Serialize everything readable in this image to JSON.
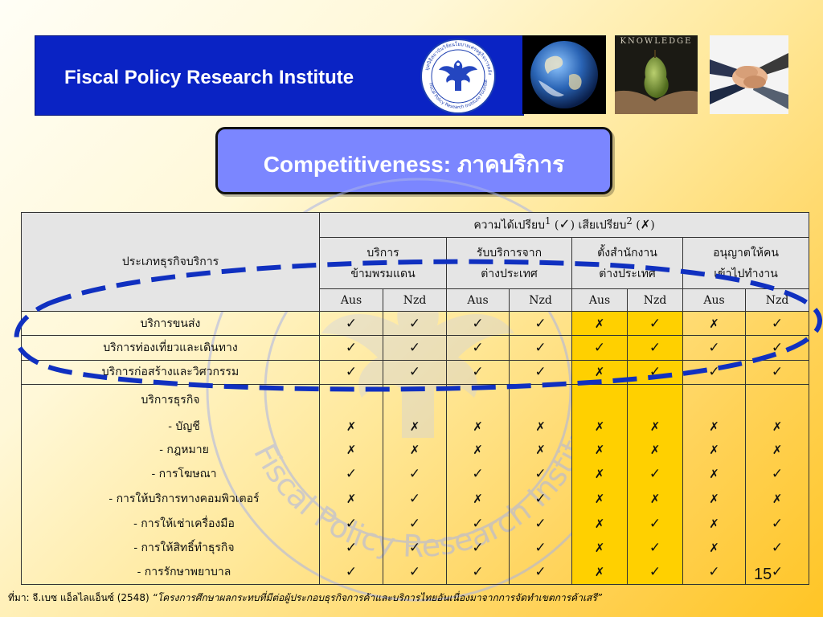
{
  "header": {
    "title": "Fiscal Policy Research Institute",
    "seal_text_top": "มูลนิธิสถาบันวิจัยนโยบายเศรษฐกิจการคลัง",
    "seal_text_bottom": "Fiscal Policy Research Institute Foundation",
    "knowledge_label": "KNOWLEDGE"
  },
  "slide_title": "Competitiveness: ภาคบริการ",
  "table": {
    "type_header": "ประเภทธุรกิจบริการ",
    "group_header_prefix": "ความได้เปรียบ",
    "group_sup1": "1",
    "group_sep": " (",
    "group_mid": ") เสียเปรียบ",
    "group_sup2": "2",
    "group_end": ")",
    "categories": [
      {
        "line1": "บริการ",
        "line2": "ข้ามพรมแดน"
      },
      {
        "line1": "รับบริการจาก",
        "line2": "ต่างประเทศ"
      },
      {
        "line1": "ตั้งสำนักงาน",
        "line2": "ต่างประเทศ"
      },
      {
        "line1": "อนุญาตให้คน",
        "line2": "เข้าไปทำงาน"
      }
    ],
    "countries": [
      "Aus",
      "Nzd",
      "Aus",
      "Nzd",
      "Aus",
      "Nzd",
      "Aus",
      "Nzd"
    ],
    "rows": [
      {
        "label": "บริการขนส่ง",
        "indent": false,
        "marks": [
          "Y",
          "Y",
          "Y",
          "Y",
          "X",
          "Y",
          "X",
          "Y"
        ]
      },
      {
        "label": "บริการท่องเที่ยวและเดินทาง",
        "indent": false,
        "marks": [
          "Y",
          "Y",
          "Y",
          "Y",
          "Y",
          "Y",
          "Y",
          "Y"
        ]
      },
      {
        "label": "บริการก่อสร้างและวิศวกรรม",
        "indent": false,
        "marks": [
          "Y",
          "Y",
          "Y",
          "Y",
          "X",
          "Y",
          "Y",
          "Y"
        ]
      },
      {
        "label": "บริการธุรกิจ",
        "indent": false,
        "marks": [
          "",
          "",
          "",
          "",
          "",
          "",
          "",
          ""
        ]
      },
      {
        "label": "- บัญชี",
        "indent": true,
        "marks": [
          "X",
          "X",
          "X",
          "X",
          "X",
          "X",
          "X",
          "X"
        ]
      },
      {
        "label": "- กฎหมาย",
        "indent": true,
        "marks": [
          "X",
          "X",
          "X",
          "X",
          "X",
          "X",
          "X",
          "X"
        ]
      },
      {
        "label": "- การโฆษณา",
        "indent": true,
        "marks": [
          "Y",
          "Y",
          "Y",
          "Y",
          "X",
          "Y",
          "X",
          "Y"
        ]
      },
      {
        "label": "- การให้บริการทางคอมพิวเตอร์",
        "indent": true,
        "marks": [
          "X",
          "Y",
          "X",
          "Y",
          "X",
          "X",
          "X",
          "X"
        ]
      },
      {
        "label": "- การให้เช่าเครื่องมือ",
        "indent": true,
        "marks": [
          "Y",
          "Y",
          "Y",
          "Y",
          "X",
          "Y",
          "X",
          "Y"
        ]
      },
      {
        "label": "- การให้สิทธิ์ทำธุรกิจ",
        "indent": true,
        "marks": [
          "Y",
          "Y",
          "Y",
          "Y",
          "X",
          "Y",
          "X",
          "Y"
        ]
      },
      {
        "label": "- การรักษาพยาบาล",
        "indent": true,
        "marks": [
          "Y",
          "Y",
          "Y",
          "Y",
          "X",
          "Y",
          "Y",
          "Y"
        ]
      }
    ],
    "highlight_columns": [
      4,
      5
    ],
    "check_symbol": "✓",
    "cross_symbol": "✗"
  },
  "page_number": "15",
  "footer": {
    "source_label": "ที่มา: จี.เบซ แอ็ลไลแอ็นซ์ (2548) ",
    "source_title": "“โครงการศึกษาผลกระทบที่มีต่อผู้ประกอบธุรกิจการค้าและบริการไทยอันเนื่องมาจากการจัดทำเขตการค้าเสรี”"
  },
  "colors": {
    "header_bg": "#0a23c4",
    "title_box_bg": "#7b86ff",
    "highlight": "#ffd000",
    "ellipse": "#1030c0"
  }
}
